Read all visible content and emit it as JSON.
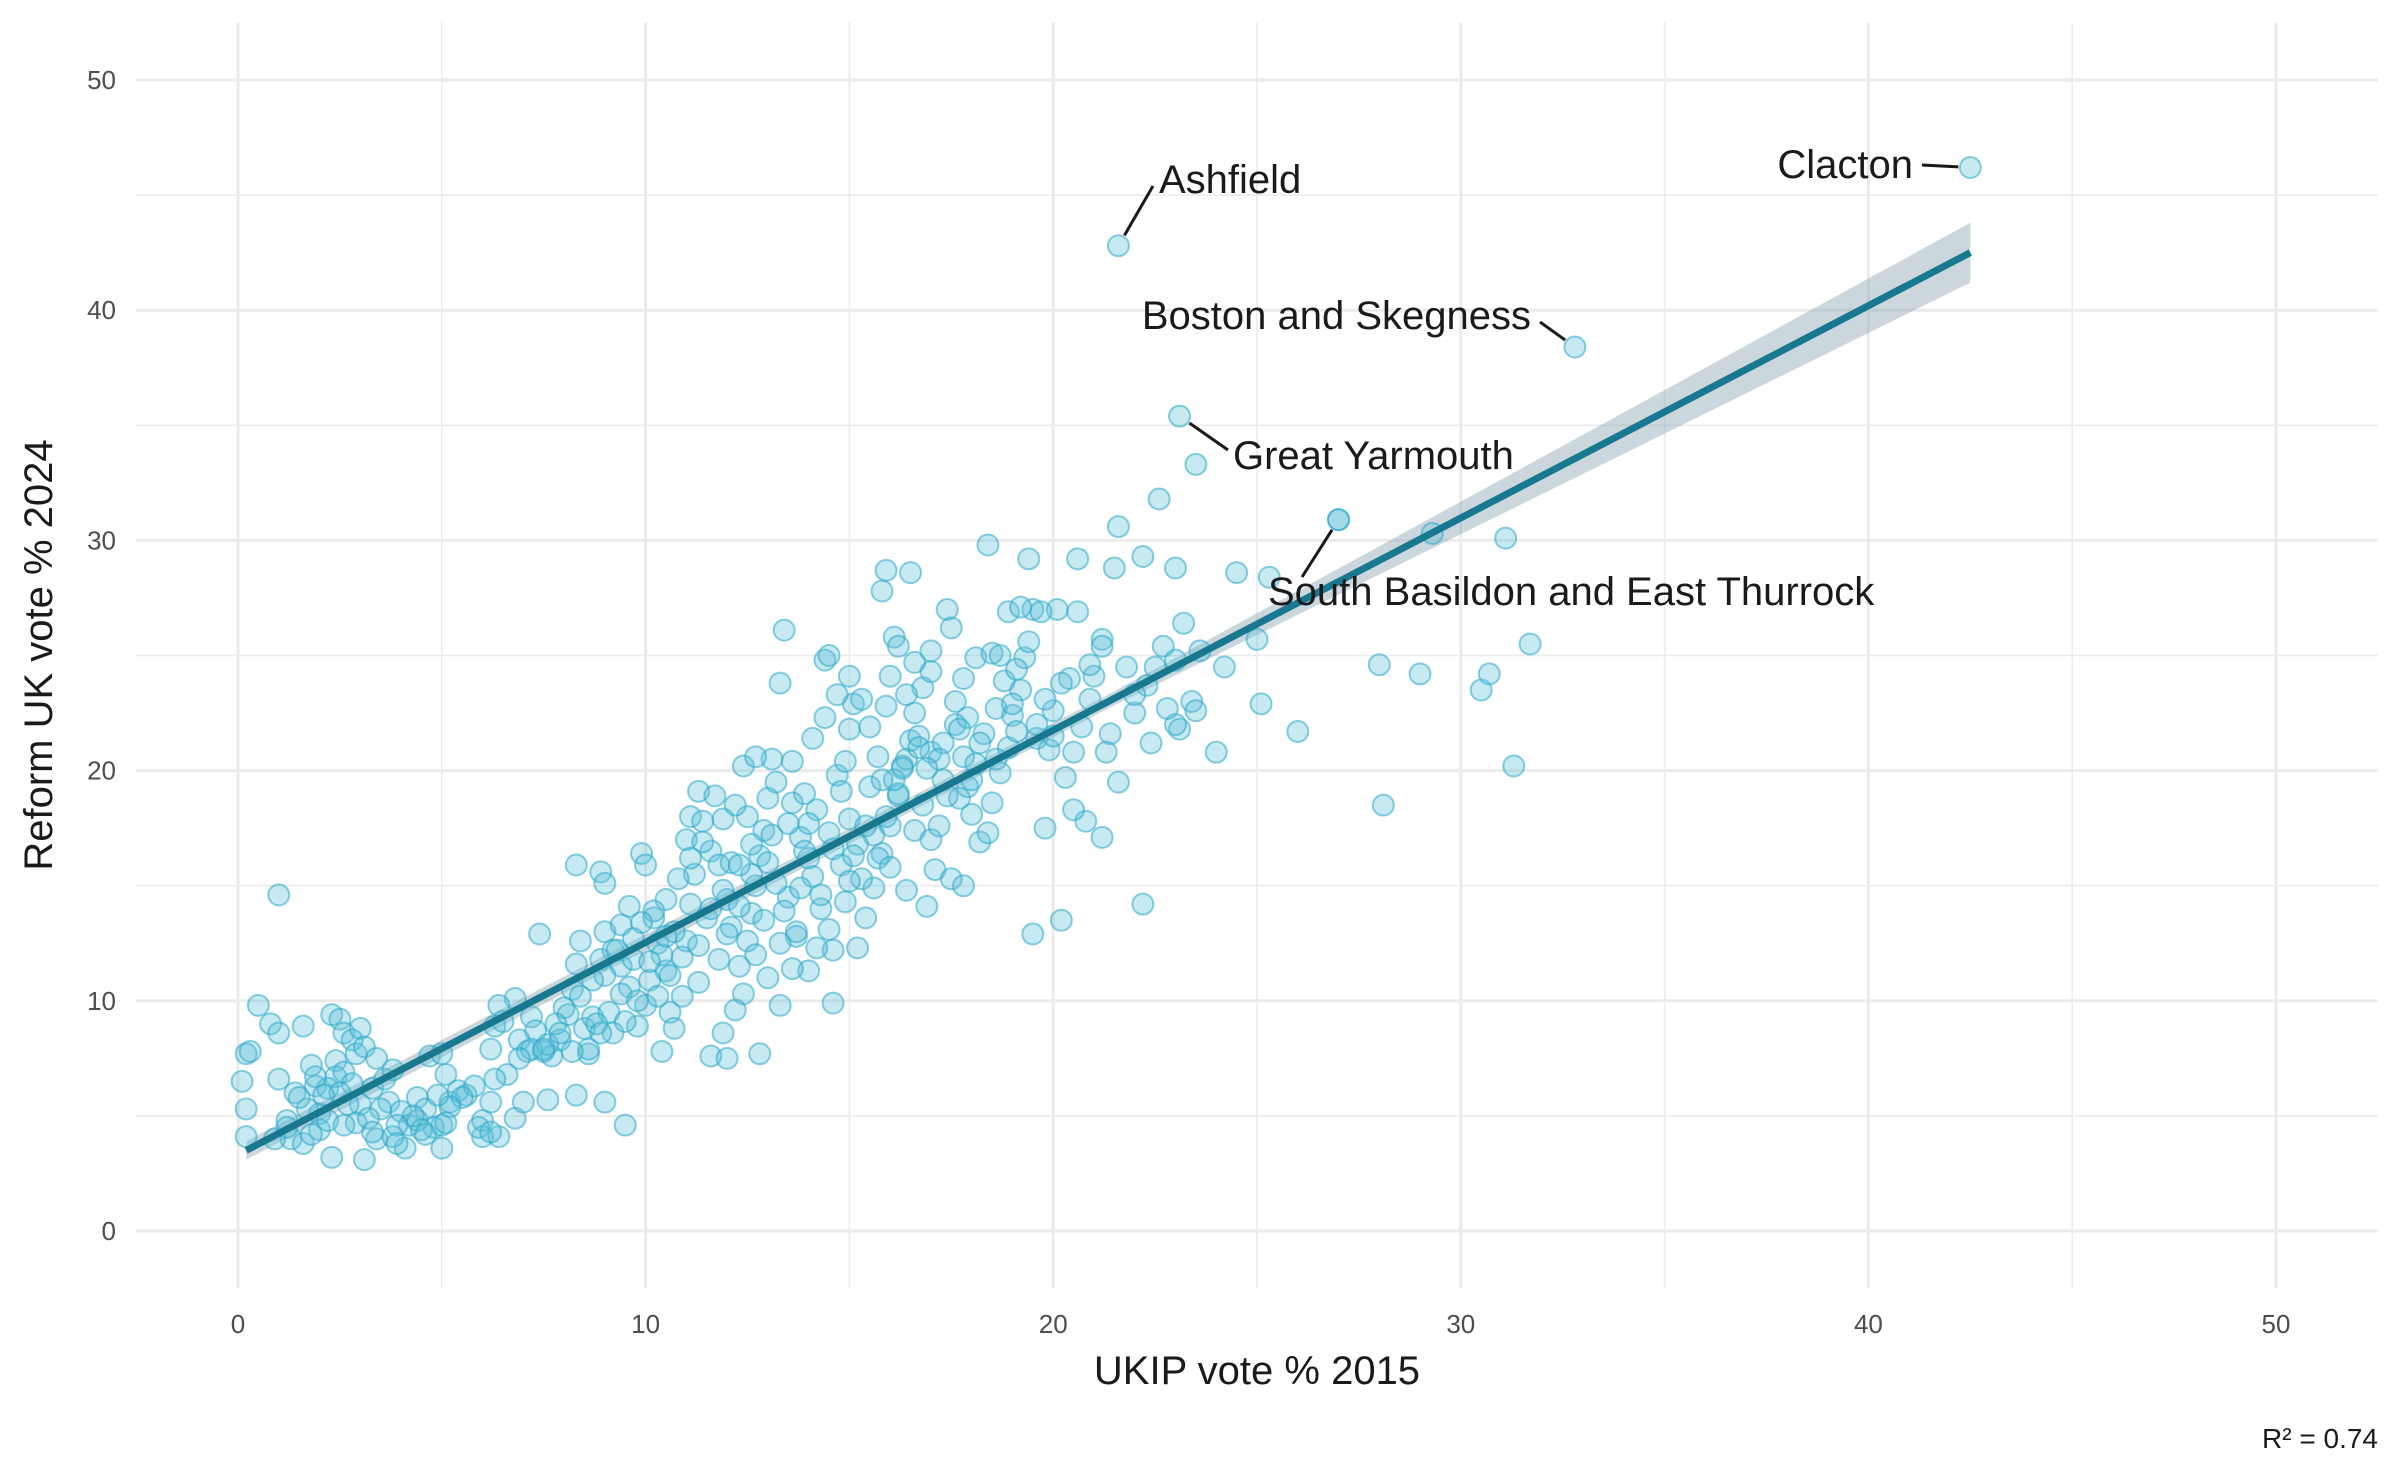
{
  "chart_data": {
    "type": "scatter",
    "xlabel": "UKIP vote % 2015",
    "ylabel": "Reform UK vote % 2024",
    "xlim": [
      -2.5,
      52.5
    ],
    "ylim": [
      -2.5,
      52.5
    ],
    "x_ticks": [
      0,
      10,
      20,
      30,
      40,
      50
    ],
    "y_ticks": [
      0,
      10,
      20,
      30,
      40,
      50
    ],
    "grid": true,
    "colors": {
      "points_fill": "#5fc1d9",
      "points_stroke": "#2aa8c9",
      "trend_line": "#17788f",
      "confidence_band": "#8fa6b3",
      "grid": "#ebebeb"
    },
    "trend_line": {
      "x": [
        0.2,
        42.5
      ],
      "y": [
        3.5,
        42.5
      ],
      "band_halfwidth_low": 0.4,
      "band_halfwidth_high": 1.3
    },
    "r_squared_label": "R² = 0.74",
    "labeled_points": [
      {
        "label": "Clacton",
        "x": 42.5,
        "y": 46.2
      },
      {
        "label": "Ashfield",
        "x": 21.6,
        "y": 42.8
      },
      {
        "label": "Boston and Skegness",
        "x": 32.8,
        "y": 38.4
      },
      {
        "label": "Great Yarmouth",
        "x": 23.1,
        "y": 35.4
      },
      {
        "label": "South Basildon and East Thurrock",
        "x": 27.0,
        "y": 30.9
      }
    ],
    "points": [
      [
        1.0,
        14.6
      ],
      [
        0.5,
        9.8
      ],
      [
        0.8,
        9.0
      ],
      [
        1.0,
        8.6
      ],
      [
        0.2,
        7.7
      ],
      [
        0.3,
        7.8
      ],
      [
        0.1,
        6.5
      ],
      [
        0.2,
        5.3
      ],
      [
        0.2,
        4.1
      ],
      [
        1.0,
        6.6
      ],
      [
        1.4,
        6.0
      ],
      [
        1.2,
        4.8
      ],
      [
        1.3,
        4.0
      ],
      [
        1.6,
        3.8
      ],
      [
        1.6,
        8.9
      ],
      [
        1.8,
        7.2
      ],
      [
        1.9,
        6.3
      ],
      [
        2.0,
        5.1
      ],
      [
        2.0,
        4.4
      ],
      [
        2.2,
        4.8
      ],
      [
        2.3,
        9.4
      ],
      [
        2.5,
        9.2
      ],
      [
        2.6,
        8.6
      ],
      [
        2.8,
        8.3
      ],
      [
        2.9,
        7.7
      ],
      [
        3.0,
        8.8
      ],
      [
        3.1,
        8.0
      ],
      [
        2.4,
        7.4
      ],
      [
        2.4,
        6.7
      ],
      [
        2.2,
        6.2
      ],
      [
        2.6,
        6.9
      ],
      [
        2.8,
        6.4
      ],
      [
        3.0,
        5.5
      ],
      [
        3.3,
        6.2
      ],
      [
        3.4,
        7.5
      ],
      [
        3.6,
        6.6
      ],
      [
        3.8,
        7.0
      ],
      [
        3.7,
        5.6
      ],
      [
        4.0,
        5.2
      ],
      [
        4.2,
        4.6
      ],
      [
        4.4,
        5.8
      ],
      [
        4.6,
        5.3
      ],
      [
        4.8,
        4.5
      ],
      [
        5.0,
        4.6
      ],
      [
        4.7,
        7.6
      ],
      [
        5.0,
        7.7
      ],
      [
        5.1,
        6.8
      ],
      [
        5.2,
        5.6
      ],
      [
        5.0,
        3.6
      ],
      [
        4.1,
        3.6
      ],
      [
        3.1,
        3.1
      ],
      [
        2.3,
        3.2
      ],
      [
        2.9,
        4.7
      ],
      [
        3.4,
        4.0
      ],
      [
        3.8,
        4.1
      ],
      [
        4.4,
        4.8
      ],
      [
        5.4,
        6.1
      ],
      [
        5.6,
        5.9
      ],
      [
        6.0,
        4.8
      ],
      [
        6.0,
        4.1
      ],
      [
        6.2,
        5.6
      ],
      [
        6.4,
        4.1
      ],
      [
        6.2,
        7.9
      ],
      [
        6.3,
        8.9
      ],
      [
        6.5,
        9.1
      ],
      [
        6.8,
        10.1
      ],
      [
        6.9,
        8.3
      ],
      [
        7.1,
        7.8
      ],
      [
        7.2,
        9.3
      ],
      [
        7.3,
        8.7
      ],
      [
        7.5,
        7.8
      ],
      [
        7.7,
        7.6
      ],
      [
        7.9,
        8.3
      ],
      [
        8.0,
        9.7
      ],
      [
        8.2,
        10.5
      ],
      [
        8.3,
        11.6
      ],
      [
        8.4,
        12.6
      ],
      [
        8.5,
        8.8
      ],
      [
        8.6,
        7.7
      ],
      [
        8.9,
        11.8
      ],
      [
        9.0,
        13.0
      ],
      [
        9.2,
        12.2
      ],
      [
        9.4,
        11.5
      ],
      [
        9.6,
        10.6
      ],
      [
        9.8,
        8.9
      ],
      [
        10.0,
        9.8
      ],
      [
        10.1,
        10.9
      ],
      [
        10.3,
        12.5
      ],
      [
        10.5,
        11.3
      ],
      [
        10.6,
        9.5
      ],
      [
        7.4,
        12.9
      ],
      [
        8.3,
        15.9
      ],
      [
        8.9,
        15.6
      ],
      [
        9.0,
        15.1
      ],
      [
        9.4,
        13.3
      ],
      [
        9.6,
        14.1
      ],
      [
        9.9,
        16.4
      ],
      [
        10.0,
        15.9
      ],
      [
        10.2,
        13.6
      ],
      [
        10.4,
        12.0
      ],
      [
        10.7,
        8.8
      ],
      [
        10.9,
        10.2
      ],
      [
        11.0,
        12.6
      ],
      [
        11.1,
        14.2
      ],
      [
        11.2,
        15.5
      ],
      [
        11.0,
        17.0
      ],
      [
        11.1,
        18.0
      ],
      [
        11.4,
        17.8
      ],
      [
        11.3,
        19.1
      ],
      [
        11.6,
        16.5
      ],
      [
        11.8,
        15.9
      ],
      [
        12.0,
        14.4
      ],
      [
        12.1,
        13.2
      ],
      [
        12.3,
        11.5
      ],
      [
        12.5,
        12.6
      ],
      [
        12.6,
        13.8
      ],
      [
        12.7,
        15.0
      ],
      [
        12.8,
        16.3
      ],
      [
        12.9,
        17.4
      ],
      [
        13.0,
        18.8
      ],
      [
        13.2,
        19.5
      ],
      [
        13.1,
        20.5
      ],
      [
        12.4,
        20.2
      ],
      [
        12.7,
        20.6
      ],
      [
        13.3,
        23.8
      ],
      [
        13.4,
        26.1
      ],
      [
        13.6,
        18.6
      ],
      [
        13.8,
        17.1
      ],
      [
        14.0,
        16.2
      ],
      [
        14.1,
        15.4
      ],
      [
        14.3,
        14.0
      ],
      [
        14.5,
        13.1
      ],
      [
        14.6,
        12.2
      ],
      [
        14.7,
        19.8
      ],
      [
        14.9,
        20.4
      ],
      [
        15.0,
        21.8
      ],
      [
        15.1,
        22.9
      ],
      [
        15.3,
        23.1
      ],
      [
        14.4,
        24.8
      ],
      [
        14.5,
        25.0
      ],
      [
        13.5,
        14.5
      ],
      [
        13.7,
        12.8
      ],
      [
        13.0,
        11.0
      ],
      [
        12.4,
        10.3
      ],
      [
        12.2,
        9.6
      ],
      [
        11.9,
        8.6
      ],
      [
        11.6,
        7.6
      ],
      [
        12.0,
        7.5
      ],
      [
        12.8,
        7.7
      ],
      [
        13.3,
        9.8
      ],
      [
        14.0,
        11.3
      ],
      [
        14.6,
        9.9
      ],
      [
        15.2,
        12.3
      ],
      [
        15.4,
        13.6
      ],
      [
        15.6,
        14.9
      ],
      [
        15.8,
        16.4
      ],
      [
        16.0,
        17.6
      ],
      [
        16.2,
        18.9
      ],
      [
        16.3,
        20.2
      ],
      [
        16.5,
        21.3
      ],
      [
        16.6,
        22.5
      ],
      [
        16.8,
        23.6
      ],
      [
        17.0,
        24.3
      ],
      [
        16.1,
        25.8
      ],
      [
        16.2,
        25.4
      ],
      [
        15.8,
        27.8
      ],
      [
        15.9,
        28.7
      ],
      [
        16.5,
        28.6
      ],
      [
        17.4,
        27.0
      ],
      [
        17.5,
        26.2
      ],
      [
        17.6,
        22.0
      ],
      [
        17.8,
        20.6
      ],
      [
        17.9,
        19.3
      ],
      [
        18.0,
        18.1
      ],
      [
        18.2,
        16.9
      ],
      [
        18.4,
        17.3
      ],
      [
        18.5,
        18.6
      ],
      [
        18.7,
        19.9
      ],
      [
        18.9,
        21.0
      ],
      [
        19.0,
        22.4
      ],
      [
        19.2,
        23.5
      ],
      [
        19.3,
        24.9
      ],
      [
        19.5,
        27.0
      ],
      [
        19.4,
        29.2
      ],
      [
        18.4,
        29.8
      ],
      [
        20.1,
        27.0
      ],
      [
        20.6,
        29.2
      ],
      [
        21.5,
        28.8
      ],
      [
        21.6,
        30.6
      ],
      [
        22.2,
        29.3
      ],
      [
        22.6,
        31.8
      ],
      [
        23.0,
        28.8
      ],
      [
        20.3,
        19.7
      ],
      [
        20.5,
        20.8
      ],
      [
        20.7,
        21.9
      ],
      [
        20.9,
        23.1
      ],
      [
        21.0,
        24.1
      ],
      [
        21.2,
        25.7
      ],
      [
        21.4,
        21.6
      ],
      [
        21.3,
        20.8
      ],
      [
        21.6,
        19.5
      ],
      [
        21.2,
        17.1
      ],
      [
        20.8,
        17.8
      ],
      [
        20.5,
        18.3
      ],
      [
        19.8,
        17.5
      ],
      [
        19.5,
        12.9
      ],
      [
        20.2,
        13.5
      ],
      [
        22.2,
        14.2
      ],
      [
        22.0,
        22.5
      ],
      [
        22.3,
        23.7
      ],
      [
        22.5,
        24.5
      ],
      [
        22.7,
        25.4
      ],
      [
        23.0,
        24.8
      ],
      [
        23.2,
        26.4
      ],
      [
        23.4,
        23.0
      ],
      [
        23.5,
        22.6
      ],
      [
        23.1,
        21.8
      ],
      [
        23.0,
        22.0
      ],
      [
        23.6,
        25.2
      ],
      [
        24.2,
        24.5
      ],
      [
        24.5,
        28.6
      ],
      [
        25.0,
        25.7
      ],
      [
        25.3,
        28.4
      ],
      [
        25.1,
        22.9
      ],
      [
        26.0,
        21.7
      ],
      [
        24.0,
        20.8
      ],
      [
        28.0,
        24.6
      ],
      [
        28.1,
        18.5
      ],
      [
        29.0,
        24.2
      ],
      [
        29.3,
        30.3
      ],
      [
        30.5,
        23.5
      ],
      [
        30.7,
        24.2
      ],
      [
        31.1,
        30.1
      ],
      [
        31.3,
        20.2
      ],
      [
        31.7,
        25.5
      ],
      [
        23.5,
        33.3
      ],
      [
        27.0,
        30.9
      ],
      [
        14.8,
        19.1
      ],
      [
        15.5,
        19.3
      ],
      [
        16.2,
        19.0
      ],
      [
        16.6,
        17.4
      ],
      [
        17.0,
        17.0
      ],
      [
        17.2,
        17.6
      ],
      [
        17.3,
        19.6
      ],
      [
        17.7,
        18.8
      ],
      [
        18.1,
        20.3
      ],
      [
        18.3,
        21.6
      ],
      [
        18.6,
        22.7
      ],
      [
        18.8,
        23.9
      ],
      [
        19.1,
        24.4
      ],
      [
        19.6,
        21.4
      ],
      [
        19.9,
        20.9
      ],
      [
        20.0,
        22.6
      ],
      [
        15.0,
        17.9
      ],
      [
        15.2,
        16.8
      ],
      [
        15.7,
        16.2
      ],
      [
        16.0,
        15.8
      ],
      [
        16.4,
        14.8
      ],
      [
        16.9,
        14.1
      ],
      [
        17.1,
        15.7
      ],
      [
        17.5,
        15.3
      ],
      [
        17.8,
        15.0
      ],
      [
        14.2,
        18.3
      ],
      [
        14.0,
        17.7
      ],
      [
        13.9,
        19.0
      ],
      [
        13.6,
        20.4
      ],
      [
        14.1,
        21.4
      ],
      [
        14.4,
        22.3
      ],
      [
        14.7,
        23.3
      ],
      [
        15.0,
        24.1
      ],
      [
        12.5,
        18.0
      ],
      [
        12.2,
        18.5
      ],
      [
        11.9,
        17.9
      ],
      [
        11.7,
        18.9
      ],
      [
        11.4,
        16.9
      ],
      [
        11.1,
        16.2
      ],
      [
        10.8,
        15.3
      ],
      [
        10.5,
        14.4
      ],
      [
        10.2,
        13.9
      ],
      [
        9.9,
        13.4
      ],
      [
        9.7,
        12.7
      ],
      [
        9.3,
        12.2
      ],
      [
        9.0,
        11.1
      ],
      [
        8.7,
        10.9
      ],
      [
        8.4,
        10.2
      ],
      [
        8.1,
        9.4
      ],
      [
        7.8,
        9.0
      ],
      [
        7.6,
        8.1
      ],
      [
        7.2,
        7.9
      ],
      [
        6.9,
        7.5
      ],
      [
        6.6,
        6.8
      ],
      [
        6.3,
        6.6
      ],
      [
        5.8,
        6.3
      ],
      [
        5.5,
        5.8
      ],
      [
        5.2,
        5.4
      ],
      [
        4.9,
        5.9
      ],
      [
        4.5,
        4.4
      ],
      [
        4.3,
        5.0
      ],
      [
        3.9,
        4.6
      ],
      [
        3.5,
        5.3
      ],
      [
        3.2,
        4.9
      ],
      [
        2.7,
        5.5
      ],
      [
        2.5,
        6.0
      ],
      [
        2.1,
        5.9
      ],
      [
        1.9,
        6.7
      ],
      [
        1.7,
        5.3
      ],
      [
        1.5,
        5.8
      ],
      [
        8.3,
        5.9
      ],
      [
        9.0,
        5.6
      ],
      [
        9.5,
        4.6
      ],
      [
        7.6,
        5.7
      ],
      [
        6.8,
        4.9
      ],
      [
        5.9,
        4.5
      ],
      [
        6.4,
        9.8
      ],
      [
        8.7,
        9.3
      ],
      [
        9.2,
        8.6
      ],
      [
        10.4,
        7.8
      ],
      [
        11.3,
        10.8
      ],
      [
        11.8,
        11.8
      ],
      [
        12.0,
        12.9
      ],
      [
        12.3,
        14.1
      ],
      [
        12.6,
        16.8
      ],
      [
        13.0,
        16.0
      ],
      [
        13.2,
        15.1
      ],
      [
        13.4,
        13.9
      ],
      [
        13.7,
        13.0
      ],
      [
        14.2,
        12.3
      ],
      [
        14.9,
        14.3
      ],
      [
        15.3,
        15.3
      ],
      [
        15.6,
        17.2
      ],
      [
        15.9,
        18.0
      ],
      [
        16.1,
        19.6
      ],
      [
        16.4,
        20.5
      ],
      [
        16.7,
        21.5
      ],
      [
        17.0,
        20.8
      ],
      [
        17.3,
        21.2
      ],
      [
        17.6,
        23.0
      ],
      [
        17.9,
        22.3
      ],
      [
        18.1,
        24.9
      ],
      [
        18.5,
        25.1
      ],
      [
        18.9,
        26.9
      ],
      [
        19.2,
        27.1
      ],
      [
        19.7,
        26.9
      ],
      [
        20.6,
        26.9
      ],
      [
        21.2,
        25.4
      ],
      [
        21.8,
        24.5
      ],
      [
        22.0,
        23.3
      ],
      [
        22.4,
        21.2
      ],
      [
        22.8,
        22.7
      ],
      [
        13.8,
        14.9
      ],
      [
        14.3,
        14.6
      ],
      [
        14.8,
        15.9
      ],
      [
        15.1,
        16.3
      ],
      [
        15.4,
        17.6
      ],
      [
        15.8,
        19.6
      ],
      [
        16.3,
        20.1
      ],
      [
        16.8,
        18.5
      ],
      [
        17.4,
        18.9
      ],
      [
        18.0,
        19.6
      ],
      [
        18.6,
        20.5
      ],
      [
        19.1,
        21.7
      ],
      [
        19.8,
        23.1
      ],
      [
        20.4,
        24.0
      ],
      [
        20.9,
        24.6
      ],
      [
        12.1,
        16.0
      ],
      [
        12.9,
        13.5
      ],
      [
        13.3,
        12.5
      ],
      [
        13.6,
        11.4
      ],
      [
        12.7,
        12.0
      ],
      [
        11.5,
        13.6
      ],
      [
        10.9,
        11.9
      ],
      [
        10.6,
        11.1
      ],
      [
        10.3,
        10.2
      ],
      [
        9.7,
        11.8
      ],
      [
        9.4,
        10.3
      ],
      [
        9.1,
        9.5
      ],
      [
        8.8,
        9.0
      ],
      [
        7.0,
        5.6
      ],
      [
        6.2,
        4.3
      ],
      [
        5.1,
        4.7
      ],
      [
        4.6,
        4.2
      ],
      [
        3.9,
        3.8
      ],
      [
        3.3,
        4.3
      ],
      [
        2.6,
        4.6
      ],
      [
        1.8,
        4.2
      ],
      [
        1.2,
        4.5
      ],
      [
        0.9,
        4.0
      ],
      [
        16.7,
        21.0
      ],
      [
        17.2,
        20.5
      ],
      [
        16.9,
        20.1
      ],
      [
        17.7,
        21.8
      ],
      [
        18.2,
        21.2
      ],
      [
        19.0,
        22.9
      ],
      [
        19.6,
        22.0
      ],
      [
        20.0,
        21.5
      ],
      [
        15.7,
        20.6
      ],
      [
        15.5,
        21.9
      ],
      [
        15.9,
        22.8
      ],
      [
        16.4,
        23.3
      ],
      [
        16.0,
        24.1
      ],
      [
        17.8,
        24.0
      ],
      [
        18.7,
        25.0
      ],
      [
        17.0,
        25.2
      ],
      [
        16.6,
        24.7
      ],
      [
        19.4,
        25.6
      ],
      [
        20.2,
        23.8
      ],
      [
        14.6,
        16.6
      ],
      [
        15.0,
        15.2
      ],
      [
        14.5,
        17.3
      ],
      [
        13.9,
        16.5
      ],
      [
        13.5,
        17.7
      ],
      [
        13.1,
        17.2
      ],
      [
        12.6,
        15.5
      ],
      [
        12.3,
        15.9
      ],
      [
        11.9,
        14.8
      ],
      [
        11.6,
        14.0
      ],
      [
        11.3,
        12.4
      ],
      [
        10.7,
        13.0
      ],
      [
        10.5,
        12.8
      ],
      [
        10.1,
        11.7
      ],
      [
        9.8,
        10.0
      ],
      [
        9.5,
        9.1
      ],
      [
        8.9,
        8.6
      ],
      [
        8.6,
        7.9
      ],
      [
        8.2,
        7.8
      ],
      [
        7.9,
        8.6
      ],
      [
        7.5,
        7.9
      ]
    ]
  }
}
